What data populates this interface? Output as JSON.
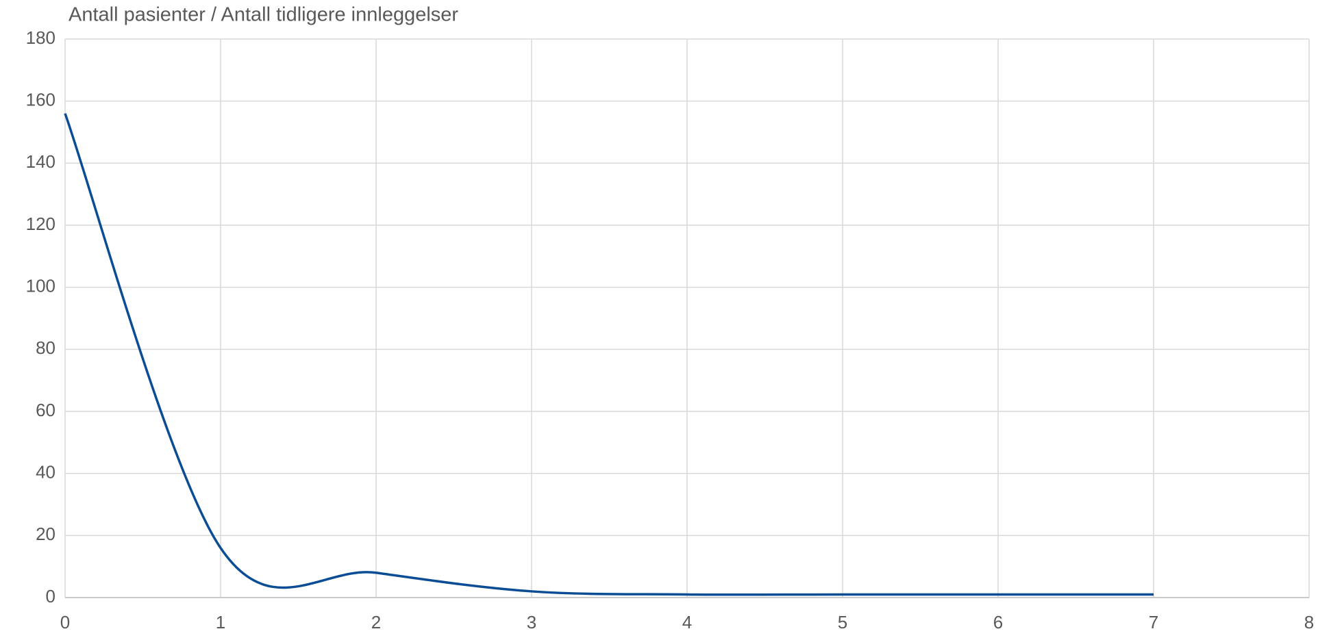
{
  "chart_data": {
    "type": "line",
    "title": "Antall pasienter / Antall tidligere innleggelser",
    "x": [
      0,
      1,
      2,
      3,
      4,
      5,
      6,
      7
    ],
    "series": [
      {
        "name": "Antall pasienter",
        "color": "#0b4d94",
        "values": [
          156,
          16,
          8,
          2,
          1,
          1,
          1,
          1
        ]
      }
    ],
    "xlim": [
      0,
      8
    ],
    "xticks": [
      0,
      1,
      2,
      3,
      4,
      5,
      6,
      7,
      8
    ],
    "ylim": [
      0,
      180
    ],
    "yticks": [
      0,
      20,
      40,
      60,
      80,
      100,
      120,
      140,
      160,
      180
    ],
    "grid": true,
    "smooth": true
  }
}
